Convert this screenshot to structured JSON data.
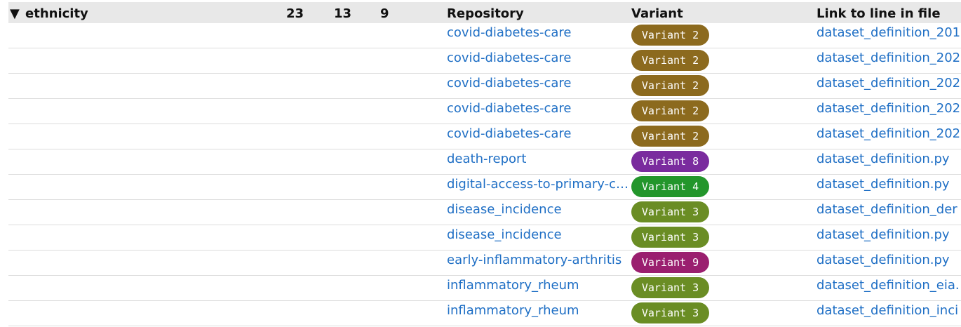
{
  "header": {
    "title": "ethnicity",
    "counts": [
      23,
      13,
      9
    ],
    "columns": [
      "Repository",
      "Variant",
      "Link to line in file"
    ]
  },
  "rows": [
    {
      "repository": "covid-diabetes-care",
      "variant": "Variant 2",
      "color": "#8c6a1e",
      "link": "dataset_definition_201"
    },
    {
      "repository": "covid-diabetes-care",
      "variant": "Variant 2",
      "color": "#8c6a1e",
      "link": "dataset_definition_202"
    },
    {
      "repository": "covid-diabetes-care",
      "variant": "Variant 2",
      "color": "#8c6a1e",
      "link": "dataset_definition_202"
    },
    {
      "repository": "covid-diabetes-care",
      "variant": "Variant 2",
      "color": "#8c6a1e",
      "link": "dataset_definition_202"
    },
    {
      "repository": "covid-diabetes-care",
      "variant": "Variant 2",
      "color": "#8c6a1e",
      "link": "dataset_definition_202"
    },
    {
      "repository": "death-report",
      "variant": "Variant 8",
      "color": "#7a2b9e",
      "link": "dataset_definition.py"
    },
    {
      "repository": "digital-access-to-primary-c…",
      "variant": "Variant 4",
      "color": "#23962b",
      "link": "dataset_definition.py"
    },
    {
      "repository": "disease_incidence",
      "variant": "Variant 3",
      "color": "#6a8d24",
      "link": "dataset_definition_der"
    },
    {
      "repository": "disease_incidence",
      "variant": "Variant 3",
      "color": "#6a8d24",
      "link": "dataset_definition.py"
    },
    {
      "repository": "early-inflammatory-arthritis",
      "variant": "Variant 9",
      "color": "#9a1f6f",
      "link": "dataset_definition.py"
    },
    {
      "repository": "inflammatory_rheum",
      "variant": "Variant 3",
      "color": "#6a8d24",
      "link": "dataset_definition_eia."
    },
    {
      "repository": "inflammatory_rheum",
      "variant": "Variant 3",
      "color": "#6a8d24",
      "link": "dataset_definition_inci"
    }
  ]
}
